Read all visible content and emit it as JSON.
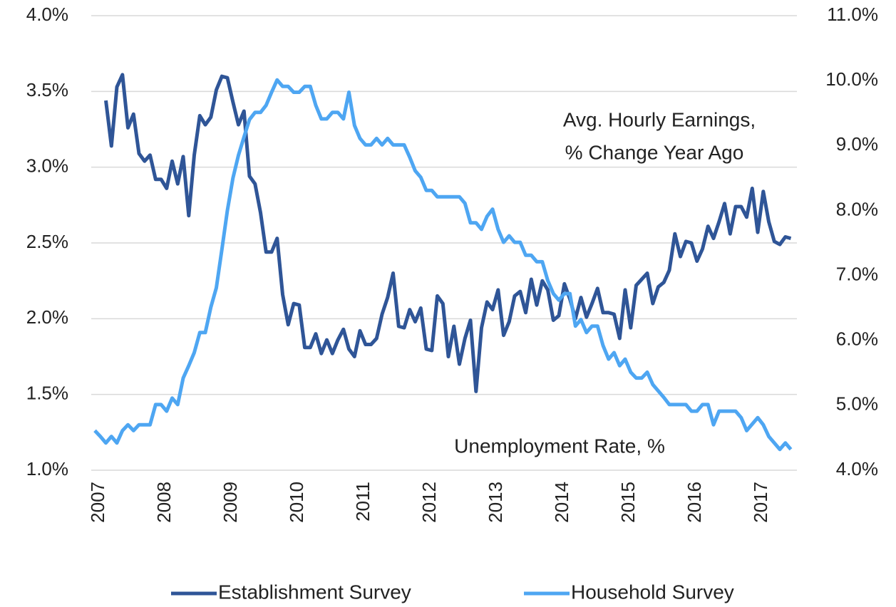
{
  "chart_data": {
    "type": "line",
    "annotations": [
      "Avg. Hourly Earnings,",
      "% Change Year Ago",
      "Unemployment Rate, %"
    ],
    "categories": [
      "2007",
      null,
      null,
      null,
      null,
      null,
      null,
      null,
      null,
      null,
      null,
      null,
      "2008",
      null,
      null,
      null,
      null,
      null,
      null,
      null,
      null,
      null,
      null,
      null,
      "2009",
      null,
      null,
      null,
      null,
      null,
      null,
      null,
      null,
      null,
      null,
      null,
      "2010",
      null,
      null,
      null,
      null,
      null,
      null,
      null,
      null,
      null,
      null,
      null,
      "2011",
      null,
      null,
      null,
      null,
      null,
      null,
      null,
      null,
      null,
      null,
      null,
      "2012",
      null,
      null,
      null,
      null,
      null,
      null,
      null,
      null,
      null,
      null,
      null,
      "2013",
      null,
      null,
      null,
      null,
      null,
      null,
      null,
      null,
      null,
      null,
      null,
      "2014",
      null,
      null,
      null,
      null,
      null,
      null,
      null,
      null,
      null,
      null,
      null,
      "2015",
      null,
      null,
      null,
      null,
      null,
      null,
      null,
      null,
      null,
      null,
      null,
      "2016",
      null,
      null,
      null,
      null,
      null,
      null,
      null,
      null,
      null,
      null,
      null,
      "2017",
      null,
      null,
      null,
      null,
      null,
      null
    ],
    "series": [
      {
        "name": "Establishment Survey",
        "color": "#2f5597",
        "values": [
          null,
          null,
          3.44,
          3.14,
          3.53,
          3.61,
          3.26,
          3.35,
          3.09,
          3.04,
          3.08,
          2.92,
          2.92,
          2.86,
          3.04,
          2.89,
          3.07,
          2.68,
          3.08,
          3.34,
          3.28,
          3.33,
          3.51,
          3.6,
          3.59,
          3.43,
          3.28,
          3.37,
          2.94,
          2.89,
          2.7,
          2.44,
          2.44,
          2.53,
          2.16,
          1.96,
          2.1,
          2.09,
          1.81,
          1.81,
          1.9,
          1.77,
          1.86,
          1.77,
          1.86,
          1.93,
          1.8,
          1.75,
          1.92,
          1.83,
          1.83,
          1.87,
          2.03,
          2.14,
          2.3,
          1.95,
          1.94,
          2.06,
          1.98,
          2.07,
          1.8,
          1.79,
          2.15,
          2.1,
          1.75,
          1.95,
          1.7,
          1.87,
          1.99,
          1.52,
          1.94,
          2.11,
          2.06,
          2.19,
          1.89,
          1.98,
          2.15,
          2.18,
          2.04,
          2.26,
          2.09,
          2.25,
          2.19,
          1.99,
          2.02,
          2.23,
          2.13,
          2.0,
          2.14,
          2.01,
          2.1,
          2.2,
          2.04,
          2.04,
          2.03,
          1.87,
          2.19,
          1.94,
          2.22,
          2.26,
          2.3,
          2.1,
          2.21,
          2.24,
          2.32,
          2.56,
          2.41,
          2.51,
          2.5,
          2.38,
          2.46,
          2.61,
          2.53,
          2.64,
          2.76,
          2.56,
          2.74,
          2.74,
          2.67,
          2.86,
          2.57,
          2.84,
          2.64,
          2.51,
          2.49,
          2.54,
          2.53
        ]
      },
      {
        "name": "Household Survey",
        "color": "#4ea6f2",
        "axis": "y2",
        "values": [
          4.61,
          4.52,
          4.42,
          4.52,
          4.42,
          4.61,
          4.7,
          4.61,
          4.7,
          4.7,
          4.7,
          5.01,
          5.01,
          4.91,
          5.11,
          5.01,
          5.42,
          5.61,
          5.81,
          6.12,
          6.12,
          6.51,
          6.81,
          7.4,
          8.0,
          8.5,
          8.85,
          9.13,
          9.4,
          9.51,
          9.51,
          9.62,
          9.82,
          10.01,
          9.91,
          9.91,
          9.82,
          9.82,
          9.91,
          9.91,
          9.62,
          9.41,
          9.41,
          9.51,
          9.51,
          9.41,
          9.82,
          9.31,
          9.11,
          9.01,
          9.01,
          9.11,
          9.01,
          9.11,
          9.01,
          9.01,
          9.01,
          8.82,
          8.61,
          8.51,
          8.31,
          8.31,
          8.21,
          8.21,
          8.21,
          8.21,
          8.21,
          8.11,
          7.81,
          7.81,
          7.71,
          7.91,
          8.02,
          7.71,
          7.51,
          7.61,
          7.51,
          7.51,
          7.31,
          7.31,
          7.21,
          7.21,
          6.92,
          6.72,
          6.62,
          6.72,
          6.72,
          6.22,
          6.32,
          6.12,
          6.22,
          6.22,
          5.92,
          5.71,
          5.81,
          5.61,
          5.71,
          5.51,
          5.42,
          5.42,
          5.51,
          5.32,
          5.22,
          5.12,
          5.01,
          5.01,
          5.01,
          5.01,
          4.91,
          4.91,
          5.01,
          5.01,
          4.7,
          4.91,
          4.91,
          4.91,
          4.91,
          4.81,
          4.61,
          4.71,
          4.81,
          4.7,
          4.52,
          4.42,
          4.32,
          4.42,
          4.32
        ]
      }
    ],
    "ylim": [
      1,
      4
    ],
    "yticks": [
      {
        "value": 1,
        "label": "1.0%"
      },
      {
        "value": 1.5,
        "label": "1.5%"
      },
      {
        "value": 2,
        "label": "2.0%"
      },
      {
        "value": 2.5,
        "label": "2.5%"
      },
      {
        "value": 3,
        "label": "3.0%"
      },
      {
        "value": 3.5,
        "label": "3.5%"
      },
      {
        "value": 4,
        "label": "4.0%"
      }
    ],
    "y2lim": [
      4,
      11
    ],
    "y2ticks": [
      {
        "value": 4,
        "label": "4.0%"
      },
      {
        "value": 5,
        "label": "5.0%"
      },
      {
        "value": 6,
        "label": "6.0%"
      },
      {
        "value": 7,
        "label": "7.0%"
      },
      {
        "value": 8,
        "label": "8.0%"
      },
      {
        "value": 9,
        "label": "9.0%"
      },
      {
        "value": 10,
        "label": "10.0%"
      },
      {
        "value": 11,
        "label": "11.0%"
      }
    ],
    "grid": true,
    "legend": "bottom"
  }
}
